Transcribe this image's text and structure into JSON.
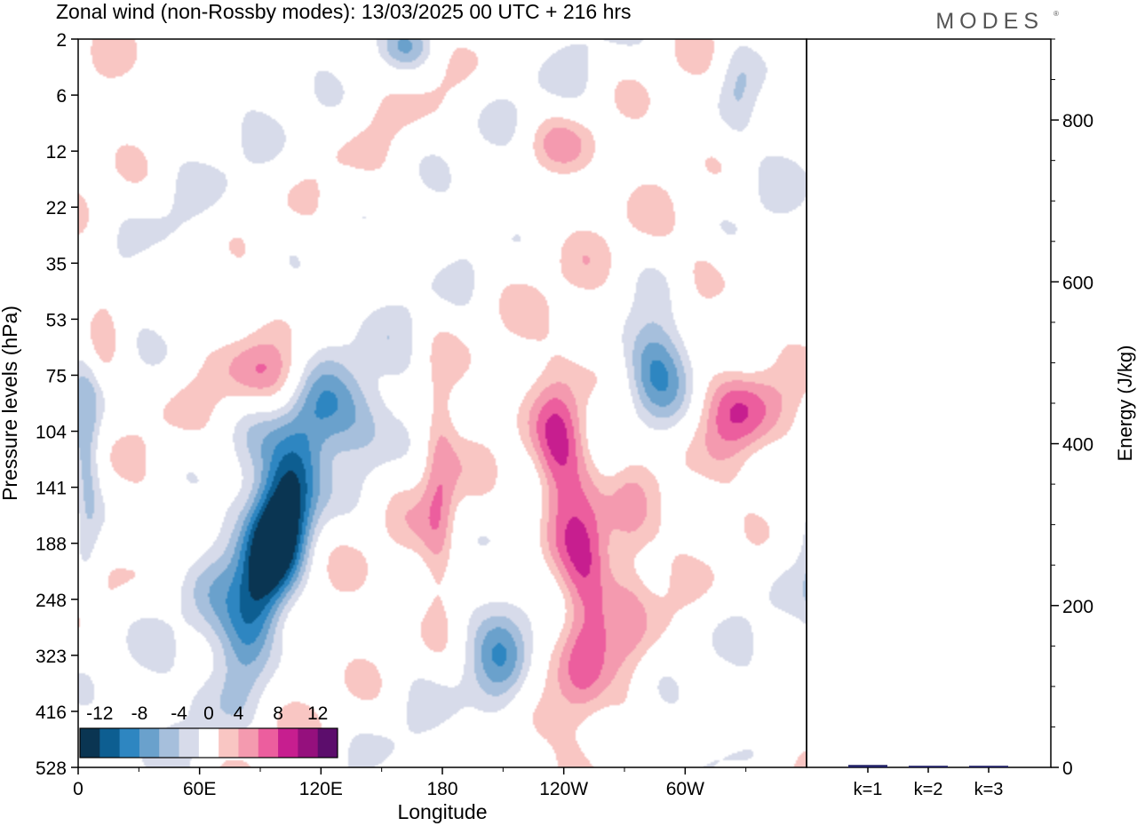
{
  "header": {
    "title": "Zonal wind (non-Rossby modes):  13/03/2025  00 UTC  + 216 hrs",
    "brand": "MODES",
    "brand_mark": "®"
  },
  "colors": {
    "neg": [
      "#0a3552",
      "#0d5e91",
      "#2e86c1",
      "#6aa1cc",
      "#a6bfdc",
      "#d7dbea"
    ],
    "pos": [
      "#f9c6c3",
      "#f49aaf",
      "#ec5e9e",
      "#c71e8f",
      "#95107d",
      "#5c0d6c"
    ],
    "axis": "#000000"
  },
  "chart_data": [
    {
      "type": "heatmap",
      "title": "Zonal wind (non-Rossby modes):  13/03/2025  00 UTC  + 216 hrs",
      "xlabel": "Longitude",
      "ylabel": "Pressure levels (hPa)",
      "x_ticks": [
        "0",
        "60E",
        "120E",
        "180",
        "120W",
        "60W"
      ],
      "x_tick_degrees": [
        0,
        60,
        120,
        180,
        240,
        300
      ],
      "xlim": [
        0,
        360
      ],
      "y_ticks": [
        "2",
        "6",
        "12",
        "22",
        "35",
        "53",
        "75",
        "104",
        "141",
        "188",
        "248",
        "323",
        "416",
        "528"
      ],
      "colorbar": {
        "labels": [
          "-12",
          "-8",
          "-4",
          "0",
          "4",
          "8",
          "12"
        ],
        "levels": [
          -14,
          -12,
          -10,
          -8,
          -6,
          -4,
          -2,
          2,
          4,
          6,
          8,
          10,
          12,
          14
        ]
      },
      "features": [
        {
          "lon": 97,
          "lev": 9.0,
          "amp": -14,
          "sx": 10,
          "sy": 1.4,
          "tilt": -3.0
        },
        {
          "lon": 86,
          "lev": 8.6,
          "amp": -3,
          "sx": 18,
          "sy": 2.8,
          "tilt": -2.5
        },
        {
          "lon": 135,
          "lev": 6.7,
          "amp": -5,
          "sx": 20,
          "sy": 0.6,
          "tilt": -0.7
        },
        {
          "lon": 95,
          "lev": 6.0,
          "amp": 6,
          "sx": 15,
          "sy": 0.5,
          "tilt": -0.8
        },
        {
          "lon": 178,
          "lev": 8.0,
          "amp": 5,
          "sx": 6,
          "sy": 1.6,
          "tilt": 0
        },
        {
          "lon": 237,
          "lev": 7.6,
          "amp": 8,
          "sx": 9,
          "sy": 1.2,
          "tilt": 0
        },
        {
          "lon": 250,
          "lev": 9.8,
          "amp": 7,
          "sx": 9,
          "sy": 1.8,
          "tilt": -0.3
        },
        {
          "lon": 272,
          "lev": 8.8,
          "amp": 4,
          "sx": 8,
          "sy": 1.8,
          "tilt": 0
        },
        {
          "lon": 325,
          "lev": 6.6,
          "amp": 6,
          "sx": 14,
          "sy": 0.6,
          "tilt": -0.5
        },
        {
          "lon": 284,
          "lev": 5.8,
          "amp": -7,
          "sx": 12,
          "sy": 0.7,
          "tilt": -1.0
        },
        {
          "lon": 209,
          "lev": 11.0,
          "amp": -5,
          "sx": 10,
          "sy": 0.9,
          "tilt": -0.6
        },
        {
          "lon": 4,
          "lev": 7.9,
          "amp": -5,
          "sx": 5,
          "sy": 1.5,
          "tilt": 0
        },
        {
          "lon": 238,
          "lev": 1.9,
          "amp": 4,
          "sx": 14,
          "sy": 0.4,
          "tilt": -0.4
        },
        {
          "lon": 325,
          "lev": 0.9,
          "amp": -4,
          "sx": 8,
          "sy": 0.7,
          "tilt": 0
        },
        {
          "lon": 163,
          "lev": 0.1,
          "amp": -5,
          "sx": 10,
          "sy": 0.3,
          "tilt": 0
        },
        {
          "lon": 309,
          "lev": 4.1,
          "amp": 4,
          "sx": 10,
          "sy": 0.6,
          "tilt": 0
        },
        {
          "lon": 12,
          "lev": 5.3,
          "amp": 3,
          "sx": 6,
          "sy": 0.8,
          "tilt": 0
        },
        {
          "lon": 365,
          "lev": 8.6,
          "amp": -3,
          "sx": 5,
          "sy": 1.5,
          "tilt": 0
        }
      ]
    },
    {
      "type": "bar",
      "ylabel": "Energy (J/kg)",
      "categories": [
        "k=1",
        "k=2",
        "k=3"
      ],
      "values": [
        3,
        2,
        2
      ],
      "ylim": [
        0,
        900
      ],
      "y_ticks": [
        "0",
        "200",
        "400",
        "600",
        "800"
      ]
    }
  ]
}
